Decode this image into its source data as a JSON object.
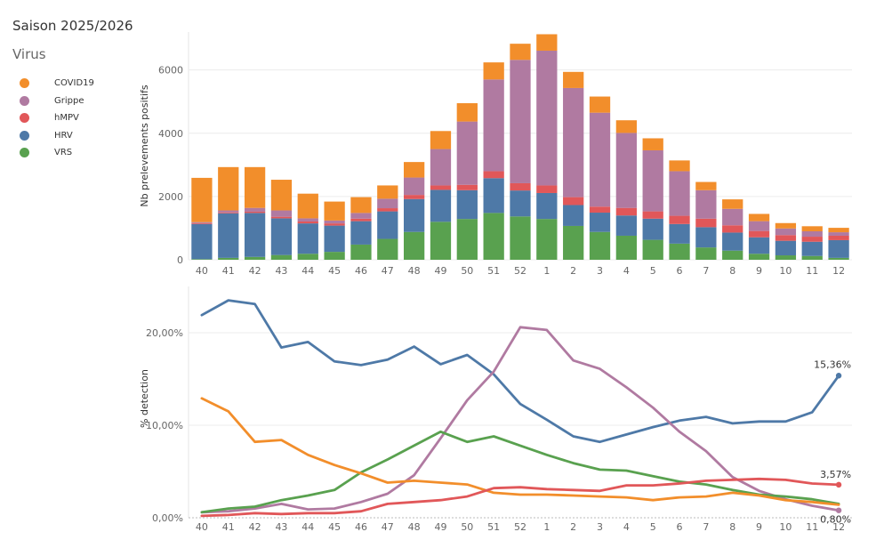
{
  "header": {
    "season": "Saison 2025/2026",
    "legend_title": "Virus"
  },
  "legend": [
    {
      "label": "COVID19",
      "color": "#f28e2b"
    },
    {
      "label": "Grippe",
      "color": "#b07aa1"
    },
    {
      "label": "hMPV",
      "color": "#e15759"
    },
    {
      "label": "HRV",
      "color": "#4e79a7"
    },
    {
      "label": "VRS",
      "color": "#59a14f"
    }
  ],
  "chart_data": [
    {
      "type": "bar",
      "stacked": true,
      "ylabel": "Nb prelevements positifs",
      "ylim": [
        0,
        7200
      ],
      "yticks": [
        0,
        2000,
        4000,
        6000
      ],
      "ytick_labels": [
        "0",
        "2000",
        "4000",
        "6000"
      ],
      "categories": [
        "40",
        "41",
        "42",
        "43",
        "44",
        "45",
        "46",
        "47",
        "48",
        "49",
        "50",
        "51",
        "52",
        "1",
        "2",
        "3",
        "4",
        "5",
        "6",
        "7",
        "8",
        "9",
        "10",
        "11",
        "12"
      ],
      "series": [
        {
          "name": "VRS",
          "color": "#59a14f",
          "values": [
            20,
            60,
            90,
            150,
            190,
            250,
            480,
            660,
            880,
            1200,
            1290,
            1480,
            1370,
            1290,
            1070,
            880,
            760,
            630,
            510,
            390,
            290,
            190,
            140,
            120,
            60
          ]
        },
        {
          "name": "HRV",
          "color": "#4e79a7",
          "values": [
            1110,
            1410,
            1390,
            1160,
            960,
            830,
            740,
            870,
            1040,
            1010,
            910,
            1100,
            820,
            820,
            660,
            610,
            640,
            670,
            620,
            640,
            570,
            520,
            460,
            450,
            560
          ]
        },
        {
          "name": "hMPV",
          "color": "#e15759",
          "values": [
            30,
            30,
            40,
            50,
            60,
            70,
            80,
            100,
            130,
            140,
            170,
            220,
            230,
            240,
            250,
            190,
            240,
            230,
            260,
            270,
            230,
            200,
            180,
            160,
            140
          ]
        },
        {
          "name": "Grippe",
          "color": "#b07aa1",
          "values": [
            30,
            60,
            120,
            200,
            100,
            90,
            180,
            300,
            550,
            1150,
            2000,
            2900,
            3900,
            4260,
            3450,
            2970,
            2370,
            1930,
            1410,
            900,
            520,
            310,
            210,
            170,
            110
          ]
        },
        {
          "name": "COVID19",
          "color": "#f28e2b",
          "values": [
            1400,
            1370,
            1290,
            970,
            780,
            600,
            500,
            420,
            490,
            570,
            580,
            540,
            510,
            520,
            510,
            510,
            400,
            380,
            340,
            260,
            300,
            230,
            170,
            160,
            140
          ]
        }
      ]
    },
    {
      "type": "line",
      "ylabel": "% detection",
      "ylim": [
        0,
        25
      ],
      "yticks": [
        0,
        10,
        20
      ],
      "ytick_labels": [
        "0,00%",
        "10,00%",
        "20,00%"
      ],
      "categories": [
        "40",
        "41",
        "42",
        "43",
        "44",
        "45",
        "46",
        "47",
        "48",
        "49",
        "50",
        "51",
        "52",
        "1",
        "2",
        "3",
        "4",
        "5",
        "6",
        "7",
        "8",
        "9",
        "10",
        "11",
        "12"
      ],
      "series": [
        {
          "name": "HRV",
          "color": "#4e79a7",
          "values": [
            21.9,
            23.5,
            23.1,
            18.4,
            19.0,
            16.9,
            16.5,
            17.1,
            18.5,
            16.6,
            17.6,
            15.5,
            12.3,
            10.6,
            8.8,
            8.2,
            9.0,
            9.8,
            10.5,
            10.9,
            10.2,
            10.4,
            10.4,
            11.4,
            15.36
          ]
        },
        {
          "name": "Grippe",
          "color": "#b07aa1",
          "values": [
            0.6,
            0.7,
            1.0,
            1.5,
            0.9,
            1.0,
            1.7,
            2.6,
            4.6,
            8.6,
            12.7,
            15.8,
            20.6,
            20.3,
            17.0,
            16.1,
            14.1,
            11.9,
            9.3,
            7.2,
            4.4,
            2.9,
            2.0,
            1.3,
            0.8
          ]
        },
        {
          "name": "VRS",
          "color": "#59a14f",
          "values": [
            0.6,
            1.0,
            1.2,
            1.9,
            2.4,
            3.0,
            4.9,
            6.3,
            7.8,
            9.3,
            8.2,
            8.8,
            7.8,
            6.8,
            5.9,
            5.2,
            5.1,
            4.5,
            3.9,
            3.6,
            3.0,
            2.5,
            2.3,
            2.0,
            1.5
          ]
        },
        {
          "name": "COVID19",
          "color": "#f28e2b",
          "values": [
            12.9,
            11.5,
            8.2,
            8.4,
            6.8,
            5.7,
            4.8,
            3.8,
            4.0,
            3.8,
            3.6,
            2.7,
            2.5,
            2.5,
            2.4,
            2.3,
            2.2,
            1.9,
            2.2,
            2.3,
            2.7,
            2.4,
            1.9,
            1.7,
            1.4
          ]
        },
        {
          "name": "hMPV",
          "color": "#e15759",
          "values": [
            0.2,
            0.3,
            0.5,
            0.4,
            0.5,
            0.5,
            0.7,
            1.5,
            1.7,
            1.9,
            2.3,
            3.2,
            3.3,
            3.1,
            3.0,
            2.9,
            3.5,
            3.5,
            3.7,
            4.0,
            4.1,
            4.2,
            4.1,
            3.7,
            3.57
          ]
        }
      ],
      "annotations": [
        {
          "series": "HRV",
          "label": "15,36%"
        },
        {
          "series": "hMPV",
          "label": "3,57%"
        },
        {
          "series": "Grippe",
          "label": "0,80%"
        }
      ]
    }
  ]
}
